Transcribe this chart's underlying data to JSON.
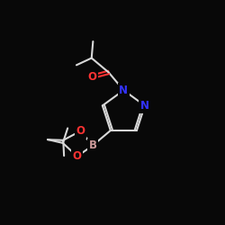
{
  "bg_color": "#080808",
  "bond_color": "#d8d8d8",
  "O_color": "#ff3333",
  "N_color": "#3333ff",
  "B_color": "#cc9999",
  "font_size": 8.5,
  "lw": 1.5,
  "fig_w": 2.5,
  "fig_h": 2.5,
  "dpi": 100,
  "xlim": [
    0,
    10
  ],
  "ylim": [
    0,
    10
  ]
}
